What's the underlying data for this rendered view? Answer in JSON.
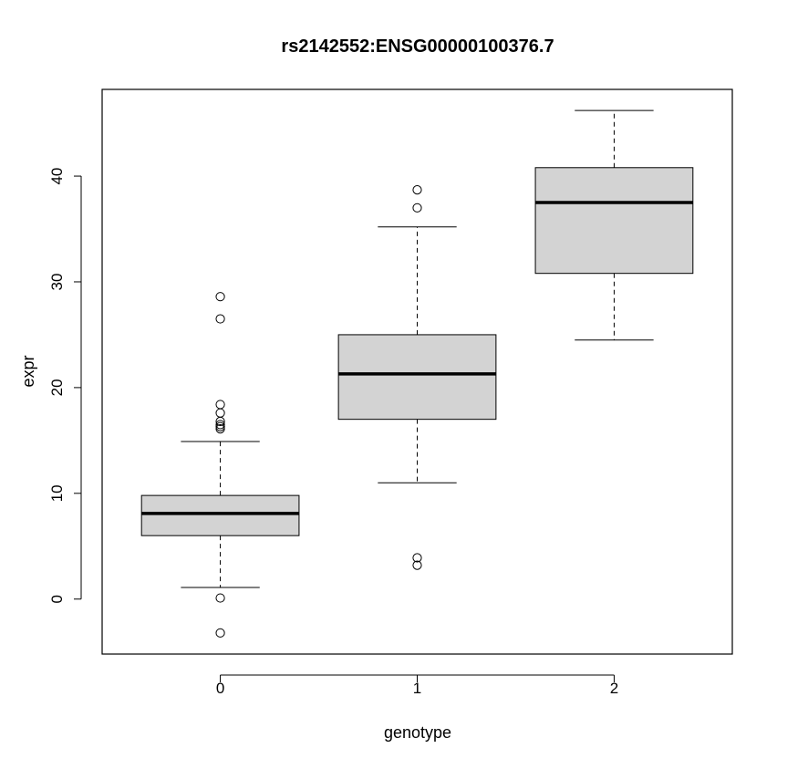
{
  "chart_data": {
    "type": "boxplot",
    "title": "rs2142552:ENSG00000100376.7",
    "xlabel": "genotype",
    "ylabel": "expr",
    "categories": [
      "0",
      "1",
      "2"
    ],
    "ylim": [
      -5.2,
      48.2
    ],
    "yticks": [
      0,
      10,
      20,
      30,
      40
    ],
    "grid": false,
    "legend": "none",
    "box_fill": "#d3d3d3",
    "line_color": "#000000",
    "boxes": [
      {
        "category": "0",
        "whisker_low": 1.1,
        "q1": 6.0,
        "median": 8.1,
        "q3": 9.8,
        "whisker_high": 14.9,
        "outliers": [
          28.6,
          26.5,
          18.4,
          17.6,
          16.8,
          16.5,
          16.3,
          16.1,
          0.1,
          -3.2
        ]
      },
      {
        "category": "1",
        "whisker_low": 11.0,
        "q1": 17.0,
        "median": 21.3,
        "q3": 25.0,
        "whisker_high": 35.2,
        "outliers": [
          38.7,
          37.0,
          3.9,
          3.2
        ]
      },
      {
        "category": "2",
        "whisker_low": 24.5,
        "q1": 30.8,
        "median": 37.5,
        "q3": 40.8,
        "whisker_high": 46.2,
        "outliers": []
      }
    ]
  }
}
